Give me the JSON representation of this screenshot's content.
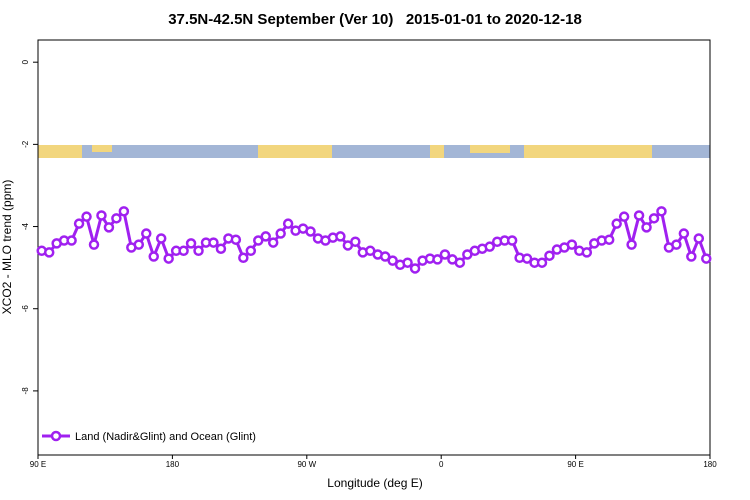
{
  "chart_data": {
    "type": "line",
    "title": "37.5N-42.5N September (Ver 10)   2015-01-01 to 2020-12-18",
    "x_label": "Longitude (deg E)",
    "y_label": "XCO2 - MLO trend (ppm)",
    "xlim": [
      90,
      540
    ],
    "xticks": [
      {
        "value": 90,
        "label": "90 E"
      },
      {
        "value": 180,
        "label": "180"
      },
      {
        "value": 270,
        "label": "90 W"
      },
      {
        "value": 360,
        "label": "0"
      },
      {
        "value": 450,
        "label": "90 E"
      },
      {
        "value": 540,
        "label": "180"
      }
    ],
    "ylim": [
      -9.56,
      0.54
    ],
    "yticks": [
      0,
      -2,
      -4,
      -6,
      -8
    ],
    "legend": "bottom-left",
    "x": [
      92.5,
      97.5,
      102.5,
      107.5,
      112.5,
      117.5,
      122.5,
      127.5,
      132.5,
      137.5,
      142.5,
      147.5,
      152.5,
      157.5,
      162.5,
      167.5,
      172.5,
      177.5,
      182.5,
      187.5,
      192.5,
      197.5,
      202.5,
      207.5,
      212.5,
      217.5,
      222.5,
      227.5,
      232.5,
      237.5,
      242.5,
      247.5,
      252.5,
      257.5,
      262.5,
      267.5,
      272.5,
      277.5,
      282.5,
      287.5,
      292.5,
      297.5,
      302.5,
      307.5,
      312.5,
      317.5,
      322.5,
      327.5,
      332.5,
      337.5,
      342.5,
      347.5,
      352.5,
      357.5,
      362.5,
      367.5,
      372.5,
      377.5,
      382.5,
      387.5,
      392.5,
      397.5,
      402.5,
      407.5,
      412.5,
      417.5,
      422.5,
      427.5,
      432.5,
      437.5,
      442.5,
      447.5,
      452.5,
      457.5,
      462.5,
      467.5,
      472.5,
      477.5,
      482.5,
      487.5,
      492.5,
      497.5,
      502.5,
      507.5,
      512.5,
      517.5,
      522.5,
      527.5,
      532.5,
      537.5
    ],
    "series": [
      {
        "name": "Land (Nadir&Glint) and Ocean (Glint)",
        "color": "#a020f0",
        "values": [
          -4.59,
          -4.63,
          -4.41,
          -4.34,
          -4.34,
          -3.93,
          -3.76,
          -4.44,
          -3.73,
          -4.02,
          -3.8,
          -3.63,
          -4.51,
          -4.44,
          -4.17,
          -4.73,
          -4.29,
          -4.78,
          -4.59,
          -4.59,
          -4.41,
          -4.59,
          -4.39,
          -4.39,
          -4.54,
          -4.29,
          -4.32,
          -4.76,
          -4.59,
          -4.34,
          -4.24,
          -4.39,
          -4.17,
          -3.93,
          -4.1,
          -4.05,
          -4.12,
          -4.29,
          -4.34,
          -4.27,
          -4.24,
          -4.46,
          -4.37,
          -4.63,
          -4.59,
          -4.68,
          -4.73,
          -4.83,
          -4.93,
          -4.88,
          -5.02,
          -4.83,
          -4.78,
          -4.8,
          -4.68,
          -4.8,
          -4.88,
          -4.68,
          -4.59,
          -4.54,
          -4.49,
          -4.37,
          -4.34,
          -4.34,
          -4.76,
          -4.78,
          -4.88,
          -4.88,
          -4.71,
          -4.56,
          -4.51,
          -4.44,
          -4.59,
          -4.63,
          -4.41,
          -4.34,
          -4.32,
          -3.93,
          -3.76,
          -4.44,
          -3.73,
          -4.02,
          -3.8,
          -3.63,
          -4.51,
          -4.44,
          -4.17,
          -4.73,
          -4.29,
          -4.78
        ]
      }
    ]
  }
}
